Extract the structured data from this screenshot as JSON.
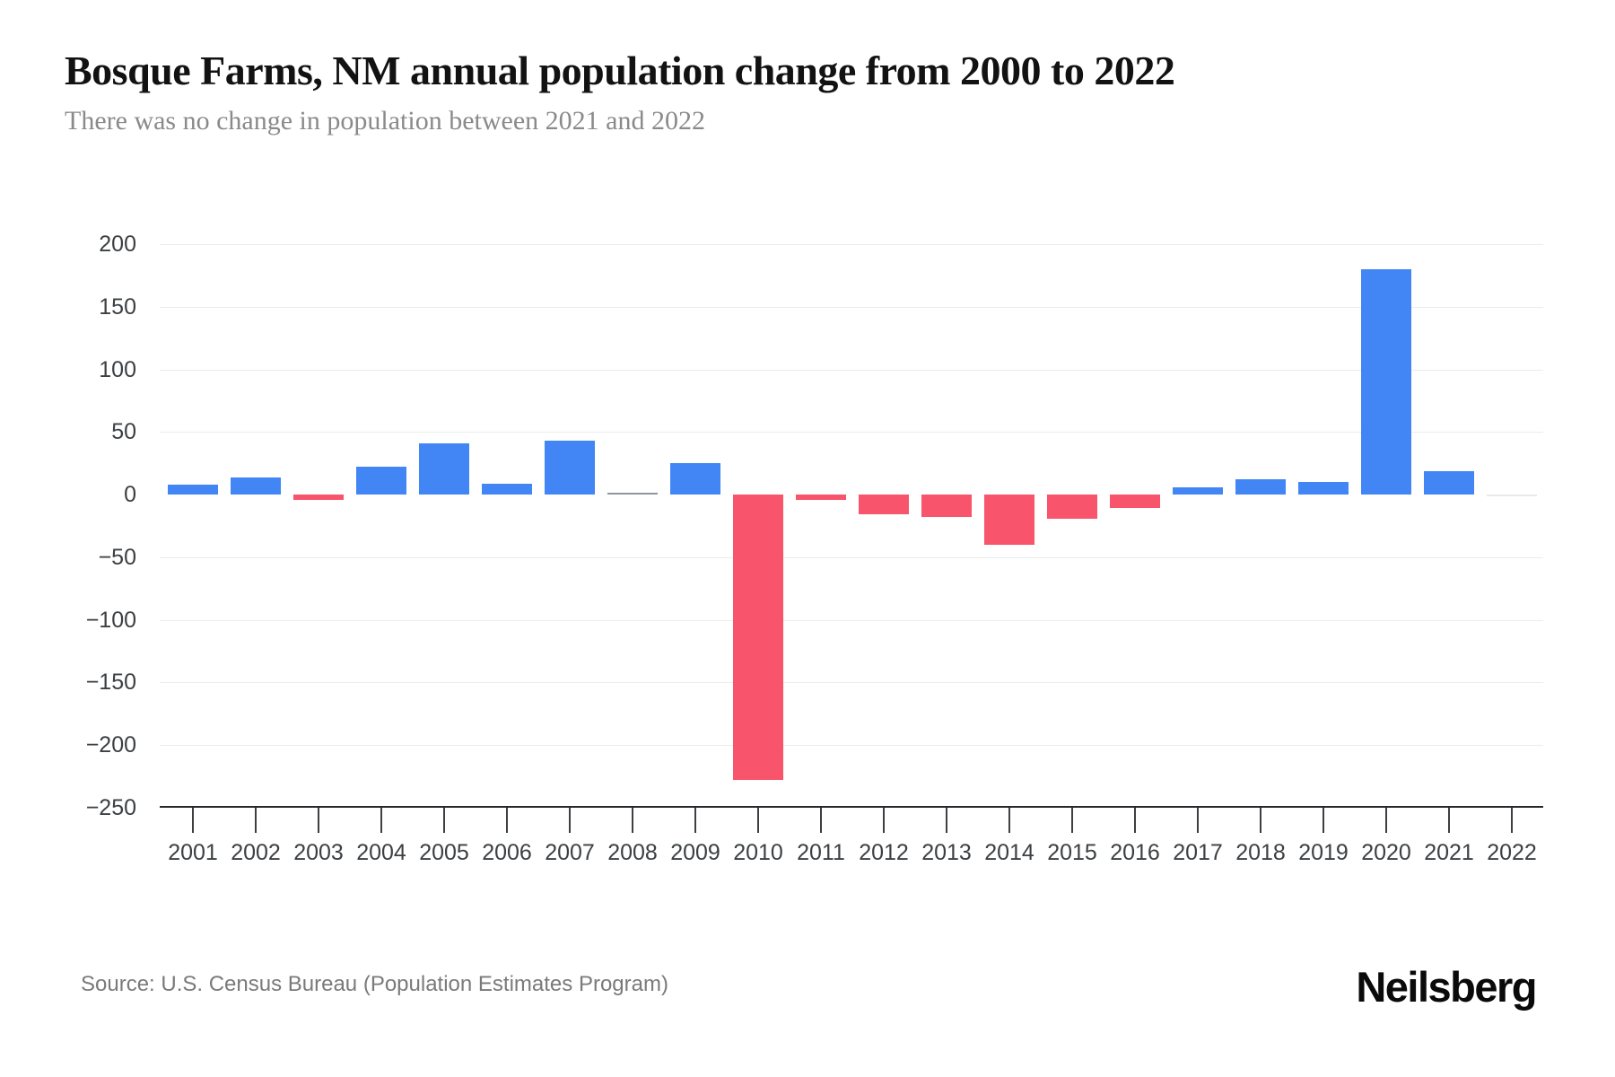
{
  "header": {
    "title": "Bosque Farms, NM annual population change from 2000 to 2022",
    "subtitle": "There was no change in population between 2021 and 2022"
  },
  "footer": {
    "source": "Source: U.S. Census Bureau (Population Estimates Program)",
    "brand": "Neilsberg"
  },
  "chart_data": {
    "type": "bar",
    "title": "Bosque Farms, NM annual population change from 2000 to 2022",
    "subtitle": "There was no change in population between 2021 and 2022",
    "categories": [
      "2001",
      "2002",
      "2003",
      "2004",
      "2005",
      "2006",
      "2007",
      "2008",
      "2009",
      "2010",
      "2011",
      "2012",
      "2013",
      "2014",
      "2015",
      "2016",
      "2017",
      "2018",
      "2019",
      "2020",
      "2021",
      "2022"
    ],
    "values": [
      8,
      14,
      -4,
      22,
      41,
      9,
      43,
      1,
      25,
      -228,
      -4,
      -16,
      -18,
      -40,
      -19,
      -11,
      6,
      12,
      10,
      180,
      19,
      0
    ],
    "xlabel": "",
    "ylabel": "",
    "ylim": [
      -250,
      200
    ],
    "yticks": [
      200,
      150,
      100,
      50,
      0,
      -50,
      -100,
      -150,
      -200,
      -250
    ],
    "grid": true,
    "legend": false,
    "colors": {
      "positive": "#4285f4",
      "negative": "#f8546c",
      "near_zero": "#8f969e",
      "zero_line": "#e9e9ec"
    }
  }
}
